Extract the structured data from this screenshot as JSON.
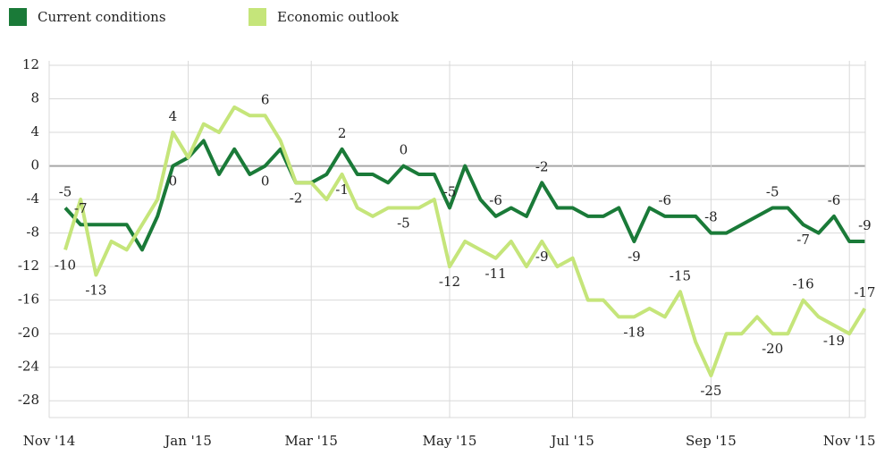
{
  "chart_data": {
    "type": "line",
    "categories": [
      "Nov '14",
      null,
      null,
      null,
      null,
      null,
      null,
      null,
      "Jan '15",
      null,
      null,
      null,
      null,
      null,
      null,
      null,
      "Mar '15",
      null,
      null,
      null,
      null,
      null,
      null,
      null,
      null,
      "May '15",
      null,
      null,
      null,
      null,
      null,
      null,
      null,
      "Jul '15",
      null,
      null,
      null,
      null,
      null,
      null,
      null,
      null,
      "Sep '15",
      null,
      null,
      null,
      null,
      null,
      null,
      null,
      null,
      "Nov '15",
      null
    ],
    "series": [
      {
        "name": "Current conditions",
        "color": "#1a7a38",
        "values": [
          -5,
          -7,
          -7,
          -7,
          -7,
          -10,
          -6,
          0,
          1,
          3,
          -1,
          2,
          -1,
          0,
          2,
          -2,
          -2,
          -1,
          2,
          -1,
          -1,
          -2,
          0,
          -1,
          -1,
          -5,
          0,
          -4,
          -6,
          -5,
          -6,
          -2,
          -5,
          -5,
          -6,
          -6,
          -5,
          -9,
          -5,
          -6,
          -6,
          -6,
          -8,
          -8,
          -7,
          -6,
          -5,
          -5,
          -7,
          -8,
          -6,
          -9,
          -9
        ],
        "value_labels": [
          "-5",
          "-7",
          null,
          null,
          null,
          null,
          null,
          "0",
          null,
          null,
          null,
          null,
          null,
          "0",
          null,
          "-2",
          null,
          null,
          "2",
          null,
          null,
          null,
          "0",
          null,
          null,
          "-5",
          null,
          null,
          "-6",
          null,
          null,
          "-2",
          null,
          null,
          null,
          null,
          null,
          "-9",
          null,
          "-6",
          null,
          null,
          "-8",
          null,
          null,
          null,
          "-5",
          null,
          "-7",
          null,
          "-6",
          null,
          "-9"
        ]
      },
      {
        "name": "Economic outlook",
        "color": "#c5e57a",
        "values": [
          -10,
          -4,
          -13,
          -9,
          -10,
          -7,
          -4,
          4,
          1,
          5,
          4,
          7,
          6,
          6,
          3,
          -2,
          -2,
          -4,
          -1,
          -5,
          -6,
          -5,
          -5,
          -5,
          -4,
          -12,
          -9,
          -10,
          -11,
          -9,
          -12,
          -9,
          -12,
          -11,
          -16,
          -16,
          -18,
          -18,
          -17,
          -18,
          -15,
          -21,
          -25,
          -20,
          -20,
          -18,
          -20,
          -20,
          -16,
          -18,
          -19,
          -20,
          -17
        ],
        "value_labels": [
          "-10",
          null,
          "-13",
          null,
          null,
          null,
          null,
          "4",
          null,
          null,
          null,
          null,
          null,
          "6",
          null,
          null,
          null,
          null,
          "-1",
          null,
          null,
          null,
          "-5",
          null,
          null,
          "-12",
          null,
          null,
          "-11",
          null,
          null,
          "-9",
          null,
          null,
          null,
          null,
          null,
          "-18",
          null,
          null,
          "-15",
          null,
          "-25",
          null,
          null,
          null,
          "-20",
          null,
          "-16",
          null,
          "-19",
          null,
          "-17"
        ]
      }
    ],
    "ylim": [
      -30,
      12
    ],
    "yticks": [
      12,
      8,
      4,
      0,
      -4,
      -8,
      -12,
      -16,
      -20,
      -24,
      -28
    ],
    "grid": true
  }
}
